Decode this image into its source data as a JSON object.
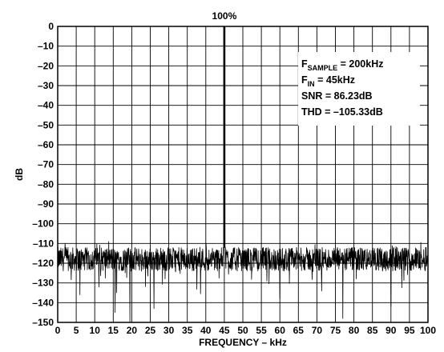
{
  "chart_data": {
    "type": "line",
    "title": "",
    "xlabel": "FREQUENCY – kHz",
    "ylabel": "dB",
    "xlim": [
      0,
      100
    ],
    "ylim": [
      -150,
      0
    ],
    "x_ticks": [
      "0",
      "5",
      "10",
      "15",
      "20",
      "25",
      "30",
      "35",
      "40",
      "45",
      "50",
      "55",
      "60",
      "65",
      "70",
      "75",
      "80",
      "85",
      "90",
      "95",
      "100"
    ],
    "y_ticks": [
      "0",
      "–10",
      "–20",
      "–30",
      "–40",
      "–50",
      "–60",
      "–70",
      "–80",
      "–90",
      "–100",
      "–110",
      "–120",
      "–130",
      "–140",
      "–150"
    ],
    "grid": true,
    "peak": {
      "label": "100%",
      "x": 45,
      "y": 0
    },
    "noise_floor": {
      "typical_db": -118,
      "min_db": -150,
      "max_db": -109,
      "dips": [
        {
          "x": 19.5,
          "y": -150
        },
        {
          "x": 15.5,
          "y": -145
        },
        {
          "x": 26,
          "y": -143
        },
        {
          "x": 77,
          "y": -148
        },
        {
          "x": 90,
          "y": -142
        },
        {
          "x": 6,
          "y": -136
        },
        {
          "x": 60,
          "y": -138
        }
      ]
    },
    "annotations": [
      {
        "main": "F",
        "sub": "SAMPLE",
        "rest": " = 200kHz"
      },
      {
        "main": "F",
        "sub": "IN",
        "rest": " = 45kHz"
      },
      {
        "main": "SNR = 86.23dB",
        "sub": "",
        "rest": ""
      },
      {
        "main": "THD = –105.33dB",
        "sub": "",
        "rest": ""
      }
    ]
  }
}
